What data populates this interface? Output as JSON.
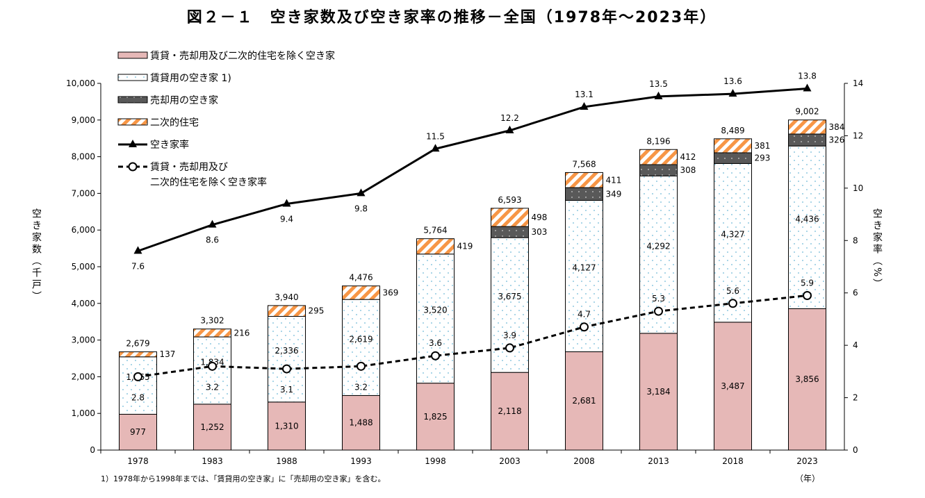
{
  "chart_data": {
    "type": "bar",
    "stacked": true,
    "title": "図２－１　空き家数及び空き家率の推移－全国（1978年～2023年）",
    "categories": [
      "1978",
      "1983",
      "1988",
      "1993",
      "1998",
      "2003",
      "2008",
      "2013",
      "2018",
      "2023"
    ],
    "xlabel": "（年）",
    "ylabel": "空き家数（千戸）",
    "y2label": "空き家率（%）",
    "ylim": [
      0,
      10000
    ],
    "y2lim": [
      0,
      14
    ],
    "yticks": [
      "0",
      "1,000",
      "2,000",
      "3,000",
      "4,000",
      "5,000",
      "6,000",
      "7,000",
      "8,000",
      "9,000",
      "10,000"
    ],
    "y2ticks": [
      "0",
      "2",
      "4",
      "6",
      "8",
      "10",
      "12",
      "14"
    ],
    "legend_position": "top-left",
    "grid": false,
    "series": [
      {
        "name": "賃貸・売却用及び二次的住宅を除く空き家",
        "kind": "bar",
        "color": "#e6b8b7",
        "values": [
          977,
          1252,
          1310,
          1488,
          1825,
          2118,
          2681,
          3184,
          3487,
          3856
        ],
        "labels": [
          "977",
          "1,252",
          "1,310",
          "1,488",
          "1,825",
          "2,118",
          "2,681",
          "3,184",
          "3,487",
          "3,856"
        ]
      },
      {
        "name": "賃貸用の空き家 1)",
        "kind": "bar",
        "color": "#ffffff",
        "values": [
          1565,
          1834,
          2336,
          2619,
          3520,
          3675,
          4127,
          4292,
          4327,
          4436
        ],
        "labels": [
          "1,565",
          "1,834",
          "2,336",
          "2,619",
          "3,520",
          "3,675",
          "4,127",
          "4,292",
          "4,327",
          "4,436"
        ]
      },
      {
        "name": "売却用の空き家",
        "kind": "bar",
        "color": "#595959",
        "values": [
          null,
          null,
          null,
          null,
          null,
          303,
          349,
          308,
          293,
          326
        ],
        "labels": [
          "",
          "",
          "",
          "",
          "",
          "303",
          "349",
          "308",
          "293",
          "326"
        ]
      },
      {
        "name": "二次的住宅",
        "kind": "bar",
        "color": "#f79646",
        "values": [
          137,
          216,
          295,
          369,
          419,
          498,
          411,
          412,
          381,
          384
        ],
        "labels": [
          "137",
          "216",
          "295",
          "369",
          "419",
          "498",
          "411",
          "412",
          "381",
          "384"
        ]
      },
      {
        "name": "空き家率",
        "kind": "line",
        "axis": "right",
        "marker": "triangle",
        "values": [
          7.6,
          8.6,
          9.4,
          9.8,
          11.5,
          12.2,
          13.1,
          13.5,
          13.6,
          13.8
        ],
        "labels": [
          "7.6",
          "8.6",
          "9.4",
          "9.8",
          "11.5",
          "12.2",
          "13.1",
          "13.5",
          "13.6",
          "13.8"
        ]
      },
      {
        "name": "賃貸・売却用及び二次的住宅を除く空き家率",
        "legend_lines": [
          "賃貸・売却用及び",
          "二次的住宅を除く空き家率"
        ],
        "kind": "line",
        "axis": "right",
        "marker": "circle",
        "dashed": true,
        "values": [
          2.8,
          3.2,
          3.1,
          3.2,
          3.6,
          3.9,
          4.7,
          5.3,
          5.6,
          5.9
        ],
        "labels": [
          "2.8",
          "3.2",
          "3.1",
          "3.2",
          "3.6",
          "3.9",
          "4.7",
          "5.3",
          "5.6",
          "5.9"
        ]
      }
    ],
    "totals": [
      2679,
      3302,
      3940,
      4476,
      5764,
      6593,
      7568,
      8196,
      8489,
      9002
    ],
    "total_labels": [
      "2,679",
      "3,302",
      "3,940",
      "4,476",
      "5,764",
      "6,593",
      "7,568",
      "8,196",
      "8,489",
      "9,002"
    ],
    "footnote": "1）1978年から1998年までは、「賃貸用の空き家」に「売却用の空き家」を含む。"
  }
}
